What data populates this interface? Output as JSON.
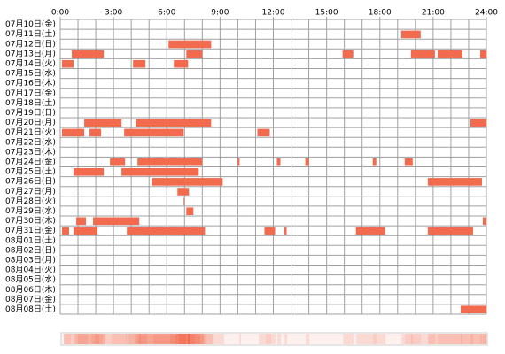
{
  "chart_data": {
    "type": "timeline",
    "categories": [
      "07月10日(金)",
      "07月11日(土)",
      "07月12日(日)",
      "07月13日(月)",
      "07月14日(火)",
      "07月15日(水)",
      "07月16日(木)",
      "07月17日(金)",
      "07月18日(土)",
      "07月19日(日)",
      "07月20日(月)",
      "07月21日(火)",
      "07月22日(水)",
      "07月23日(木)",
      "07月24日(金)",
      "07月25日(土)",
      "07月26日(日)",
      "07月27日(月)",
      "07月28日(火)",
      "07月29日(水)",
      "07月30日(木)",
      "07月31日(金)",
      "08月01日(土)",
      "08月02日(日)",
      "08月03日(月)",
      "08月04日(火)",
      "08月05日(水)",
      "08月06日(木)",
      "08月07日(金)",
      "08月08日(土)"
    ],
    "values": [
      [],
      [
        [
          19.2,
          20.3
        ]
      ],
      [
        [
          6.1,
          8.5
        ]
      ],
      [
        [
          0.65,
          2.45
        ],
        [
          7.1,
          8.0
        ],
        [
          15.9,
          16.5
        ],
        [
          19.75,
          21.1
        ],
        [
          21.25,
          22.65
        ],
        [
          23.65,
          24
        ]
      ],
      [
        [
          0.1,
          0.75
        ],
        [
          4.1,
          4.8
        ],
        [
          6.4,
          7.2
        ]
      ],
      [],
      [],
      [],
      [],
      [],
      [
        [
          1.35,
          3.45
        ],
        [
          4.25,
          8.5
        ],
        [
          23.1,
          24
        ]
      ],
      [
        [
          0.1,
          1.35
        ],
        [
          1.65,
          2.3
        ],
        [
          3.6,
          6.95
        ],
        [
          11.1,
          11.8
        ]
      ],
      [],
      [],
      [
        [
          2.8,
          3.65
        ],
        [
          4.35,
          8.0
        ],
        [
          10.0,
          10.1
        ],
        [
          12.2,
          12.4
        ],
        [
          13.8,
          14.0
        ],
        [
          17.6,
          17.8
        ],
        [
          19.4,
          19.85
        ]
      ],
      [
        [
          0.75,
          2.45
        ],
        [
          3.45,
          7.8
        ]
      ],
      [
        [
          5.15,
          9.15
        ],
        [
          20.7,
          23.75
        ]
      ],
      [
        [
          6.6,
          7.25
        ]
      ],
      [
        [
          6.95,
          7.0
        ]
      ],
      [
        [
          7.1,
          7.5
        ]
      ],
      [
        [
          0.9,
          1.45
        ],
        [
          1.85,
          4.45
        ],
        [
          23.8,
          24
        ]
      ],
      [
        [
          0.1,
          0.5
        ],
        [
          0.75,
          2.1
        ],
        [
          3.75,
          8.15
        ],
        [
          11.5,
          12.1
        ],
        [
          12.6,
          12.75
        ],
        [
          16.65,
          18.3
        ],
        [
          20.7,
          23.25
        ]
      ],
      [],
      [],
      [],
      [],
      [],
      [],
      [],
      [
        [
          22.55,
          24
        ]
      ]
    ],
    "color": "#f26b4f",
    "xlim": [
      0,
      24
    ],
    "xticks": [
      {
        "value": 0,
        "label": "0:00"
      },
      {
        "value": 3,
        "label": "3:00"
      },
      {
        "value": 6,
        "label": "6:00"
      },
      {
        "value": 9,
        "label": "9:00"
      },
      {
        "value": 12,
        "label": "12:00"
      },
      {
        "value": 15,
        "label": "15:00"
      },
      {
        "value": 18,
        "label": "18:00"
      },
      {
        "value": 21,
        "label": "21:00"
      },
      {
        "value": 24,
        "label": "24:00"
      }
    ],
    "grid": true
  }
}
